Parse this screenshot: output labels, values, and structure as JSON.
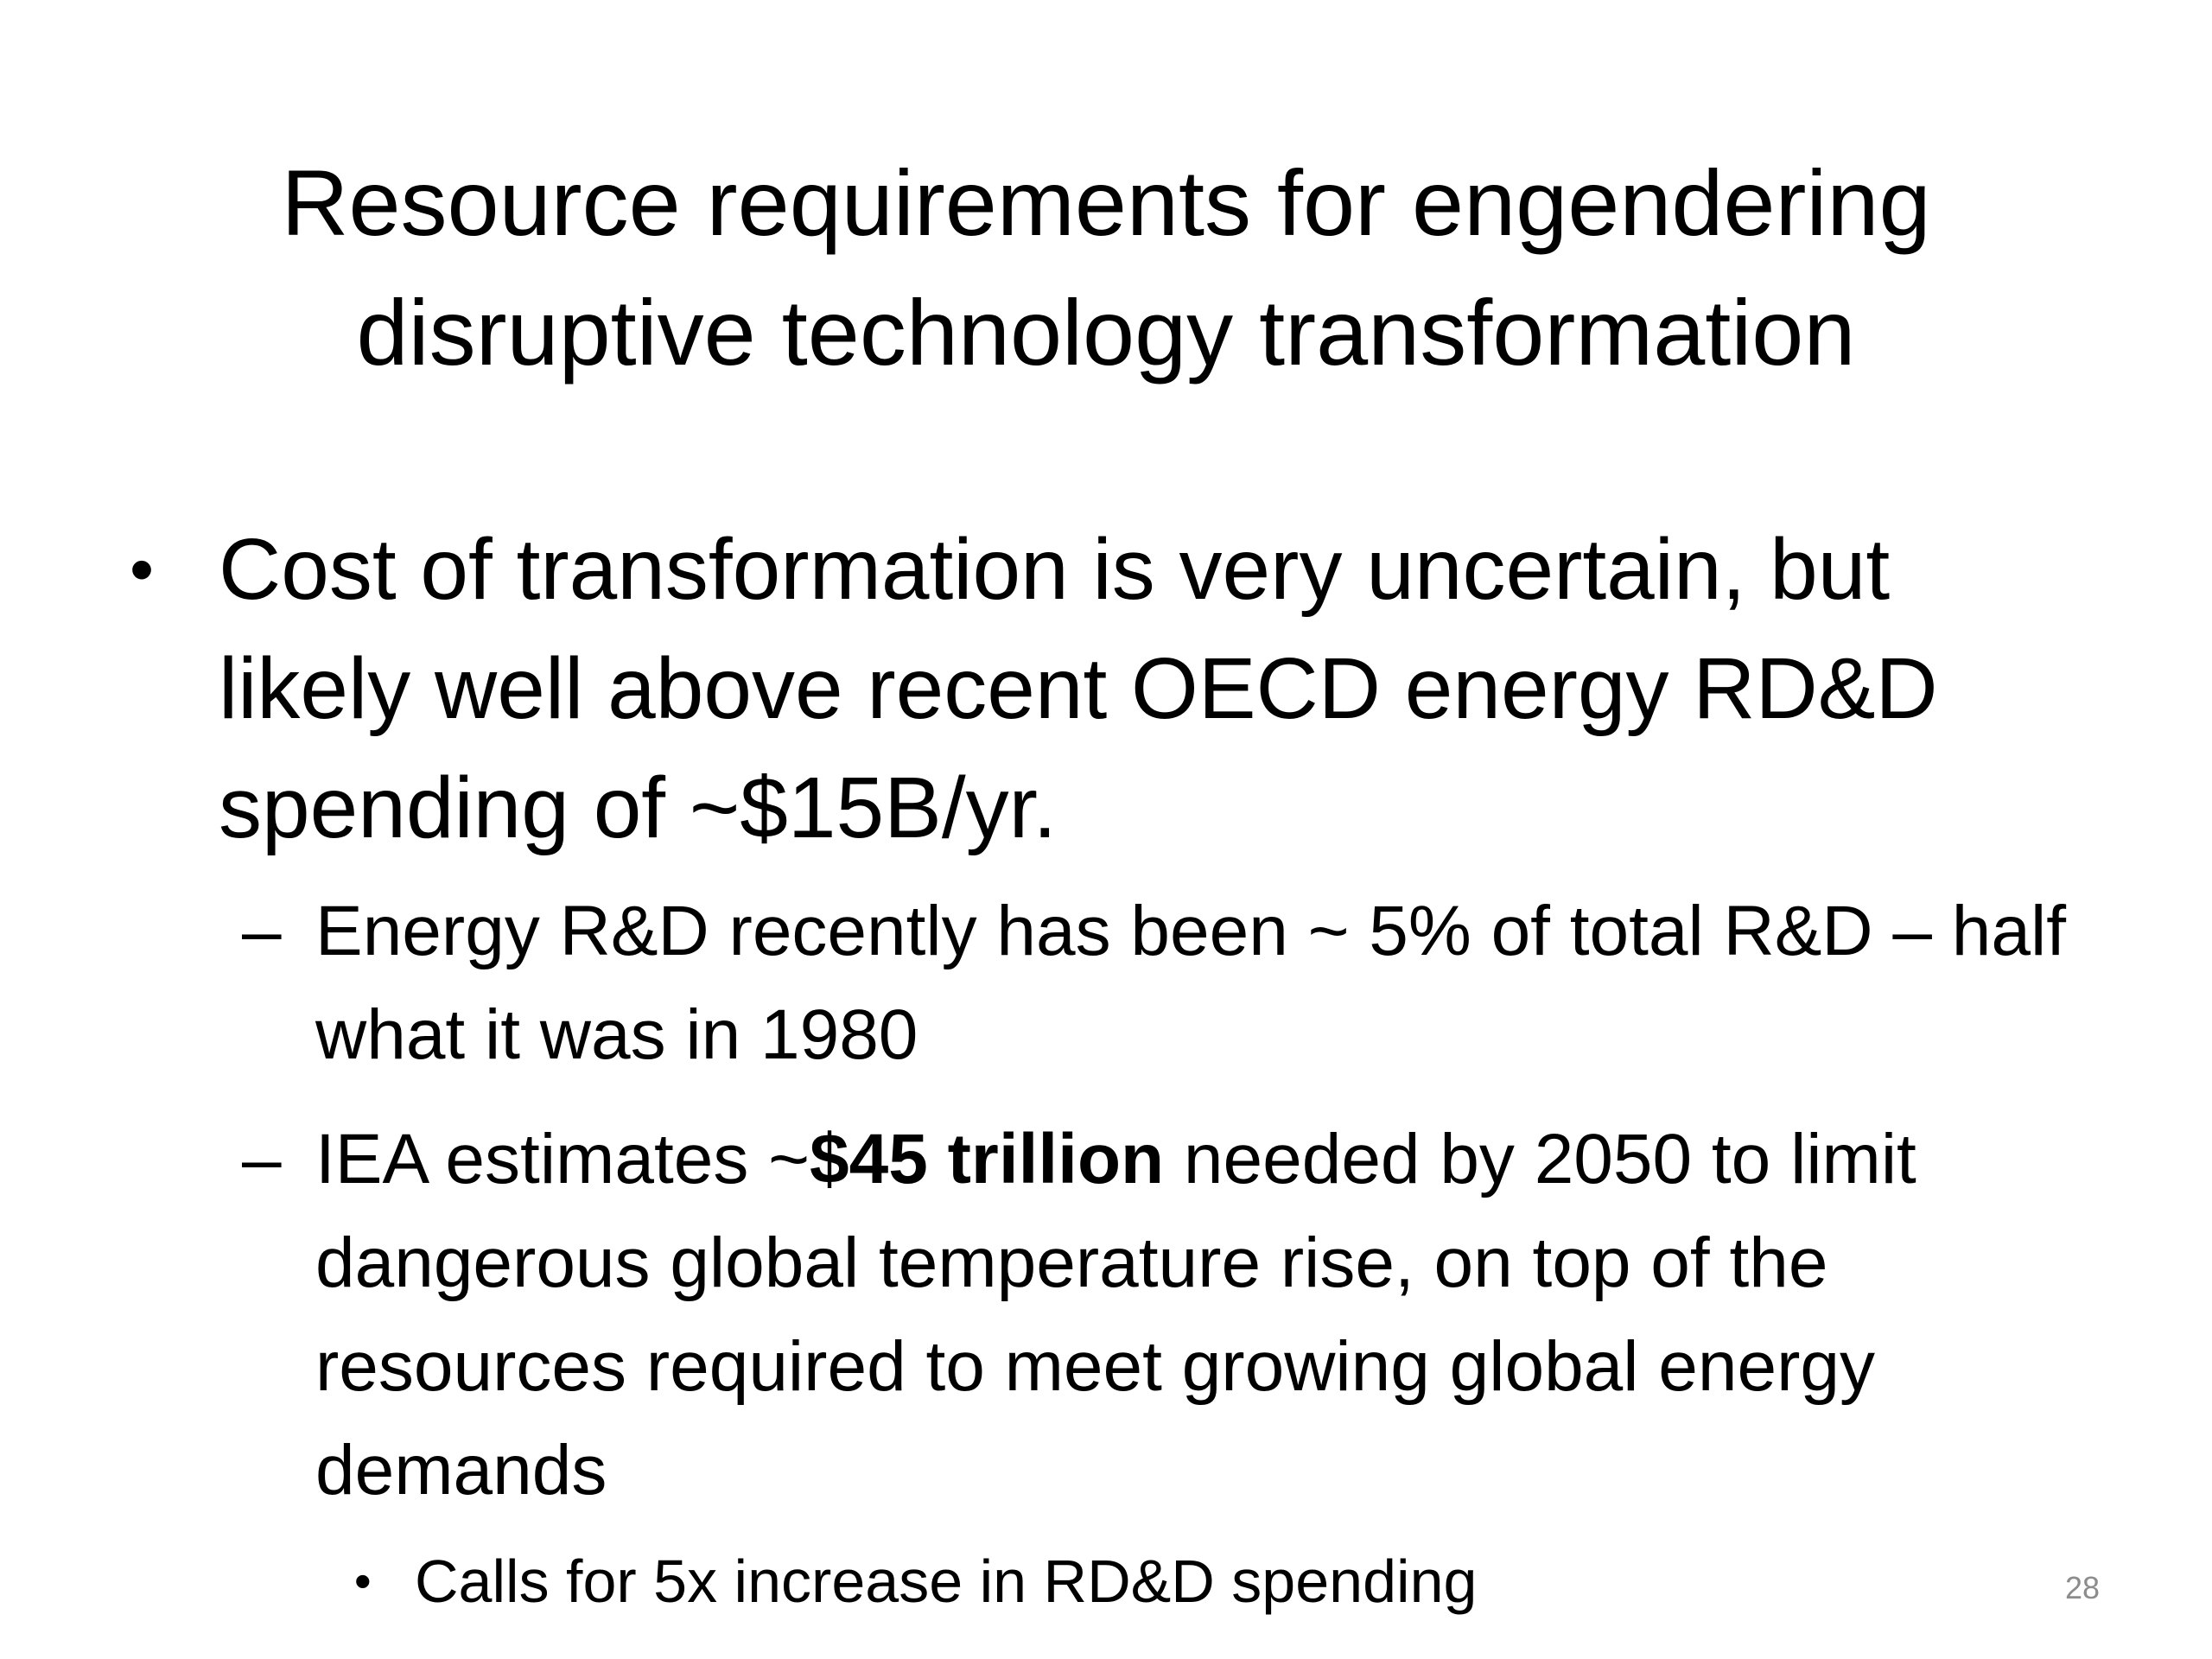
{
  "slide": {
    "title_line1": "Resource requirements for engendering",
    "title_line2": "disruptive technology transformation",
    "bullet_marker": "•",
    "dash_marker": "–",
    "bullets": [
      {
        "text": "Cost of transformation is very uncertain, but likely well above recent OECD energy RD&D spending of ~$15B/yr.",
        "sub": [
          {
            "text": "Energy R&D recently has been ~ 5% of total R&D – half what it was in 1980"
          },
          {
            "text_before": "IEA estimates ~",
            "text_bold": "$45 trillion",
            "text_after": " needed by 2050 to limit dangerous global temperature rise, on top of the resources required to meet growing global energy demands",
            "sub": [
              {
                "text": "Calls for 5x increase in RD&D spending"
              }
            ]
          }
        ]
      }
    ],
    "page_number": "28"
  }
}
